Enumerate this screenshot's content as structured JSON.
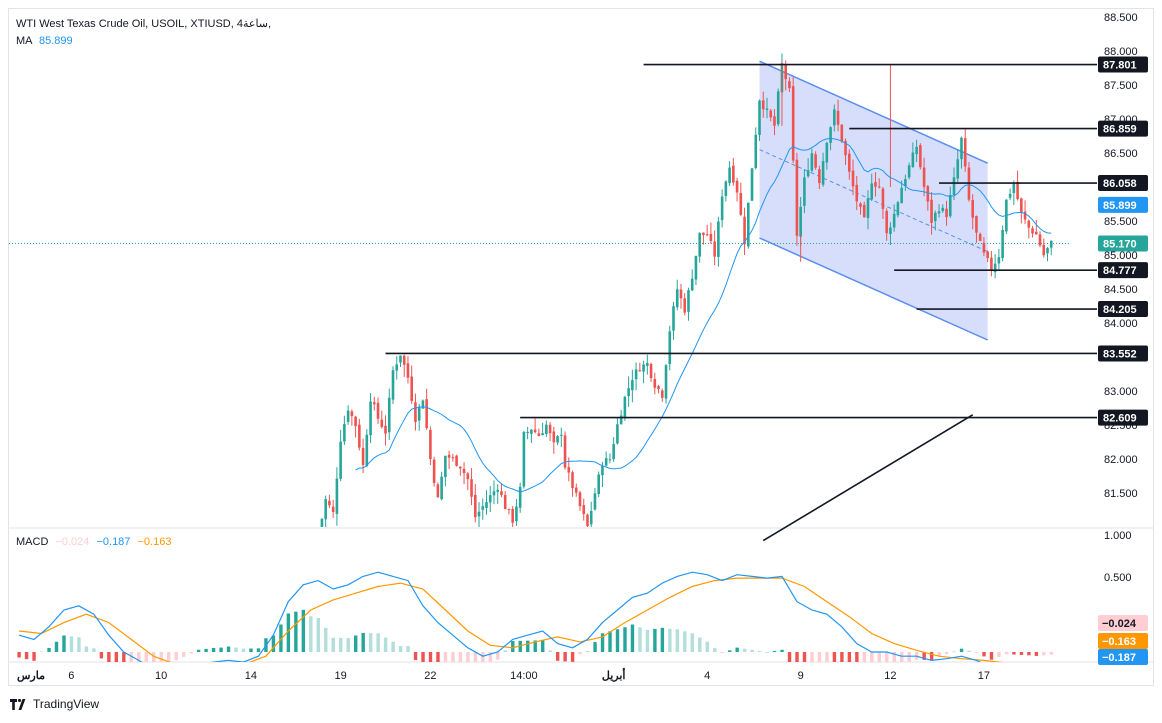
{
  "header": {
    "symbol_title": "WTI West Texas Crude Oil, USOIL, XTIUSD, 4ساعة,",
    "ma_label": "MA",
    "ma_value": "85.899",
    "macd_label": "MACD",
    "macd_hist": "−0.024",
    "macd_line": "−0.187",
    "macd_signal": "−0.163"
  },
  "branding": {
    "label": "TradingView"
  },
  "colors": {
    "up": "#26a69a",
    "down": "#ef5350",
    "ma": "#2196f3",
    "channel_fill": "#c8d3fb",
    "channel_line": "#5b8def",
    "macd_line": "#2196f3",
    "signal_line": "#ff9800",
    "hist_up_strong": "#26a69a",
    "hist_up_weak": "#b2dfdb",
    "hist_down_strong": "#ef5350",
    "hist_down_weak": "#ffcdd2",
    "last_price": "#26a69a"
  },
  "chart_data": [
    {
      "type": "candlestick",
      "ylim": [
        80.8,
        88.6
      ],
      "y_ticks": [
        81.5,
        82.0,
        82.5,
        83.0,
        83.5,
        84.0,
        84.5,
        85.0,
        85.5,
        86.0,
        86.5,
        87.0,
        87.5,
        88.0,
        88.5
      ],
      "y_tick_labels": [
        "81.500",
        "82.000",
        "82.500",
        "83.000",
        "83.500",
        "84.000",
        "84.500",
        "85.000",
        "85.500",
        "86.000",
        "86.500",
        "87.000",
        "87.500",
        "88.000",
        "88.500"
      ],
      "x_labels": [
        {
          "label": "مارس",
          "bar": -2
        },
        {
          "label": "6",
          "bar": 14
        },
        {
          "label": "10",
          "bar": 38
        },
        {
          "label": "14",
          "bar": 62
        },
        {
          "label": "19",
          "bar": 86
        },
        {
          "label": "22",
          "bar": 110
        },
        {
          "label": "14:00",
          "bar": 135
        },
        {
          "label": "أبريل",
          "bar": 159
        },
        {
          "label": "4",
          "bar": 184
        },
        {
          "label": "9",
          "bar": 209
        },
        {
          "label": "12",
          "bar": 233
        },
        {
          "label": "17",
          "bar": 258
        }
      ],
      "price_levels": [
        {
          "value": 87.801,
          "label": "87.801",
          "from_bar": 167
        },
        {
          "value": 86.859,
          "label": "86.859",
          "from_bar": 222
        },
        {
          "value": 86.058,
          "label": "86.058",
          "from_bar": 246
        },
        {
          "value": 84.777,
          "label": "84.777",
          "from_bar": 234
        },
        {
          "value": 84.205,
          "label": "84.205",
          "from_bar": 240
        },
        {
          "value": 83.552,
          "label": "83.552",
          "from_bar": 98
        },
        {
          "value": 82.609,
          "label": "82.609",
          "from_bar": 134
        }
      ],
      "ma_tag": {
        "value": 85.899,
        "label": "85.899"
      },
      "last_price": {
        "value": 85.17,
        "label": "85.170"
      },
      "channel": {
        "upper": [
          {
            "bar": 198,
            "price": 87.85
          },
          {
            "bar": 259,
            "price": 86.35
          }
        ],
        "lower": [
          {
            "bar": 198,
            "price": 85.25
          },
          {
            "bar": 259,
            "price": 83.75
          }
        ],
        "mid": [
          {
            "bar": 198,
            "price": 86.55
          },
          {
            "bar": 259,
            "price": 85.05
          }
        ]
      },
      "trendline": [
        {
          "bar": 199,
          "price": 80.8
        },
        {
          "bar": 255,
          "price": 82.65
        }
      ],
      "price_path": [
        [
          80,
          80.85
        ],
        [
          82,
          81.4
        ],
        [
          84,
          81.2
        ],
        [
          86,
          82.3
        ],
        [
          88,
          82.75
        ],
        [
          90,
          82.5
        ],
        [
          92,
          81.9
        ],
        [
          94,
          82.9
        ],
        [
          96,
          82.6
        ],
        [
          98,
          82.4
        ],
        [
          100,
          83.3
        ],
        [
          102,
          83.55
        ],
        [
          104,
          83.2
        ],
        [
          106,
          82.6
        ],
        [
          108,
          82.9
        ],
        [
          110,
          82.0
        ],
        [
          112,
          81.4
        ],
        [
          114,
          82.05
        ],
        [
          116,
          82.0
        ],
        [
          118,
          81.9
        ],
        [
          120,
          81.7
        ],
        [
          122,
          81.15
        ],
        [
          124,
          81.3
        ],
        [
          126,
          81.45
        ],
        [
          128,
          81.6
        ],
        [
          130,
          81.3
        ],
        [
          132,
          81.1
        ],
        [
          134,
          81.55
        ],
        [
          135,
          82.35
        ],
        [
          137,
          82.45
        ],
        [
          139,
          82.35
        ],
        [
          141,
          82.5
        ],
        [
          143,
          82.2
        ],
        [
          145,
          82.4
        ],
        [
          146,
          81.9
        ],
        [
          148,
          81.6
        ],
        [
          150,
          81.3
        ],
        [
          152,
          81.0
        ],
        [
          154,
          81.5
        ],
        [
          156,
          81.95
        ],
        [
          158,
          82.0
        ],
        [
          160,
          82.5
        ],
        [
          162,
          82.9
        ],
        [
          164,
          83.2
        ],
        [
          166,
          83.35
        ],
        [
          168,
          83.4
        ],
        [
          170,
          83.1
        ],
        [
          172,
          82.95
        ],
        [
          174,
          83.9
        ],
        [
          176,
          84.5
        ],
        [
          178,
          84.2
        ],
        [
          180,
          84.7
        ],
        [
          182,
          85.3
        ],
        [
          184,
          85.3
        ],
        [
          186,
          85.0
        ],
        [
          188,
          85.9
        ],
        [
          190,
          86.3
        ],
        [
          192,
          85.95
        ],
        [
          194,
          85.2
        ],
        [
          196,
          86.3
        ],
        [
          198,
          87.3
        ],
        [
          200,
          87.1
        ],
        [
          202,
          86.9
        ],
        [
          204,
          87.8
        ],
        [
          206,
          87.4
        ],
        [
          208,
          85.3
        ],
        [
          210,
          86.1
        ],
        [
          212,
          86.5
        ],
        [
          214,
          86.1
        ],
        [
          216,
          86.7
        ],
        [
          218,
          87.1
        ],
        [
          220,
          86.7
        ],
        [
          222,
          86.2
        ],
        [
          224,
          85.8
        ],
        [
          226,
          85.5
        ],
        [
          228,
          86.1
        ],
        [
          230,
          86.0
        ],
        [
          232,
          85.3
        ],
        [
          234,
          85.6
        ],
        [
          236,
          86.0
        ],
        [
          238,
          86.3
        ],
        [
          240,
          86.6
        ],
        [
          242,
          86.0
        ],
        [
          244,
          85.5
        ],
        [
          246,
          85.7
        ],
        [
          248,
          85.6
        ],
        [
          250,
          86.1
        ],
        [
          252,
          86.7
        ],
        [
          254,
          85.8
        ],
        [
          256,
          85.3
        ],
        [
          258,
          85.0
        ],
        [
          260,
          84.8
        ],
        [
          262,
          85.0
        ],
        [
          264,
          85.8
        ],
        [
          266,
          86.05
        ],
        [
          268,
          85.6
        ],
        [
          270,
          85.4
        ],
        [
          272,
          85.3
        ],
        [
          274,
          85.0
        ],
        [
          276,
          85.17
        ]
      ],
      "bar_count": 277,
      "first_visible_bar": 0
    },
    {
      "type": "macd",
      "ylim": [
        -0.3,
        1.05
      ],
      "y_ticks": [
        0.5,
        1.0
      ],
      "y_tick_labels": [
        "0.500",
        "1.000"
      ],
      "value_tags": [
        {
          "value": -0.024,
          "label": "−0.024"
        },
        {
          "value": -0.163,
          "label": "−0.163"
        },
        {
          "value": -0.187,
          "label": "−0.187"
        }
      ],
      "macd_path": [
        [
          0,
          0.2
        ],
        [
          4,
          0.15
        ],
        [
          8,
          0.3
        ],
        [
          12,
          0.5
        ],
        [
          16,
          0.55
        ],
        [
          20,
          0.45
        ],
        [
          24,
          0.2
        ],
        [
          28,
          0.0
        ],
        [
          32,
          -0.1
        ],
        [
          36,
          -0.2
        ],
        [
          40,
          -0.25
        ],
        [
          44,
          -0.2
        ],
        [
          48,
          -0.15
        ],
        [
          52,
          -0.12
        ],
        [
          56,
          -0.1
        ],
        [
          60,
          -0.12
        ],
        [
          64,
          -0.05
        ],
        [
          68,
          0.2
        ],
        [
          72,
          0.6
        ],
        [
          76,
          0.8
        ],
        [
          80,
          0.85
        ],
        [
          84,
          0.75
        ],
        [
          88,
          0.8
        ],
        [
          92,
          0.9
        ],
        [
          96,
          0.95
        ],
        [
          100,
          0.9
        ],
        [
          104,
          0.85
        ],
        [
          108,
          0.55
        ],
        [
          112,
          0.35
        ],
        [
          116,
          0.2
        ],
        [
          120,
          0.05
        ],
        [
          124,
          -0.05
        ],
        [
          128,
          0.0
        ],
        [
          132,
          0.15
        ],
        [
          136,
          0.2
        ],
        [
          140,
          0.25
        ],
        [
          144,
          0.1
        ],
        [
          148,
          0.05
        ],
        [
          152,
          0.15
        ],
        [
          156,
          0.35
        ],
        [
          160,
          0.5
        ],
        [
          164,
          0.65
        ],
        [
          168,
          0.7
        ],
        [
          172,
          0.82
        ],
        [
          176,
          0.9
        ],
        [
          180,
          0.95
        ],
        [
          184,
          0.92
        ],
        [
          188,
          0.85
        ],
        [
          192,
          0.92
        ],
        [
          196,
          0.9
        ],
        [
          200,
          0.88
        ],
        [
          204,
          0.9
        ],
        [
          208,
          0.6
        ],
        [
          212,
          0.5
        ],
        [
          216,
          0.45
        ],
        [
          220,
          0.3
        ],
        [
          224,
          0.1
        ],
        [
          228,
          0.0
        ],
        [
          232,
          0.0
        ],
        [
          236,
          -0.05
        ],
        [
          240,
          -0.05
        ],
        [
          244,
          -0.1
        ],
        [
          248,
          -0.08
        ],
        [
          252,
          -0.05
        ],
        [
          256,
          -0.1
        ],
        [
          260,
          -0.18
        ],
        [
          264,
          -0.15
        ],
        [
          268,
          -0.17
        ],
        [
          272,
          -0.19
        ],
        [
          276,
          -0.187
        ]
      ],
      "signal_path": [
        [
          0,
          0.25
        ],
        [
          6,
          0.22
        ],
        [
          12,
          0.35
        ],
        [
          18,
          0.45
        ],
        [
          24,
          0.35
        ],
        [
          30,
          0.15
        ],
        [
          36,
          -0.05
        ],
        [
          42,
          -0.15
        ],
        [
          48,
          -0.17
        ],
        [
          54,
          -0.15
        ],
        [
          60,
          -0.15
        ],
        [
          66,
          -0.05
        ],
        [
          72,
          0.25
        ],
        [
          78,
          0.5
        ],
        [
          84,
          0.62
        ],
        [
          90,
          0.7
        ],
        [
          96,
          0.78
        ],
        [
          102,
          0.82
        ],
        [
          108,
          0.75
        ],
        [
          114,
          0.5
        ],
        [
          120,
          0.25
        ],
        [
          126,
          0.08
        ],
        [
          132,
          0.05
        ],
        [
          138,
          0.12
        ],
        [
          144,
          0.18
        ],
        [
          150,
          0.12
        ],
        [
          156,
          0.18
        ],
        [
          162,
          0.35
        ],
        [
          168,
          0.5
        ],
        [
          174,
          0.65
        ],
        [
          180,
          0.78
        ],
        [
          186,
          0.85
        ],
        [
          192,
          0.88
        ],
        [
          198,
          0.88
        ],
        [
          204,
          0.88
        ],
        [
          210,
          0.78
        ],
        [
          216,
          0.6
        ],
        [
          222,
          0.42
        ],
        [
          228,
          0.22
        ],
        [
          234,
          0.1
        ],
        [
          240,
          0.02
        ],
        [
          246,
          -0.05
        ],
        [
          252,
          -0.08
        ],
        [
          258,
          -0.1
        ],
        [
          264,
          -0.13
        ],
        [
          270,
          -0.15
        ],
        [
          276,
          -0.163
        ]
      ]
    }
  ]
}
